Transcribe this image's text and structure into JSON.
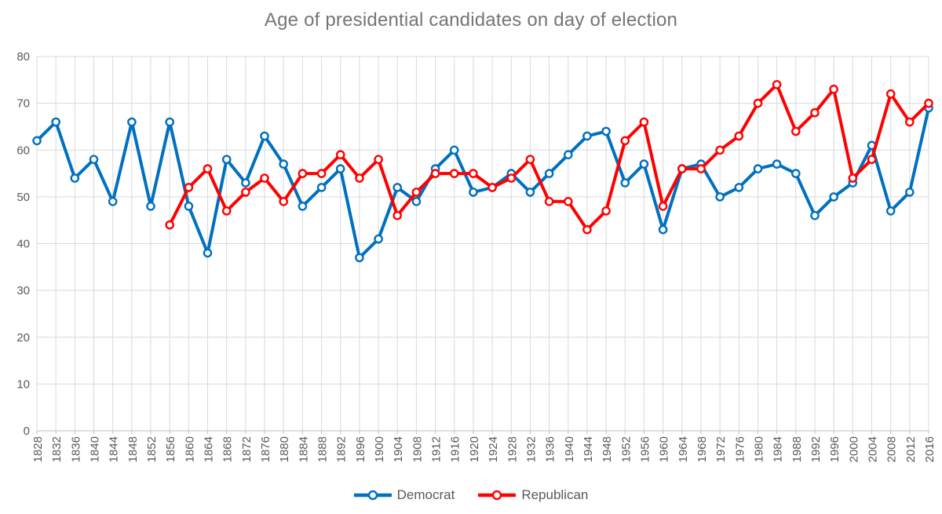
{
  "title": "Age of presidential candidates on day of election",
  "colors": {
    "democrat": "#0070C0",
    "republican": "#FF0000",
    "grid": "#D9D9D9",
    "axis_line": "#BFBFBF",
    "axis_text": "#595959",
    "title_text": "#757575",
    "background": "#FFFFFF"
  },
  "chart_data": {
    "type": "line",
    "title": "Age of presidential candidates on day of election",
    "xlabel": "",
    "ylabel": "",
    "ylim": [
      0,
      80
    ],
    "yticks": [
      0,
      10,
      20,
      30,
      40,
      50,
      60,
      70,
      80
    ],
    "grid": true,
    "marker": "circle",
    "legend_position": "bottom",
    "x": [
      1828,
      1832,
      1836,
      1840,
      1844,
      1848,
      1852,
      1856,
      1860,
      1864,
      1868,
      1872,
      1876,
      1880,
      1884,
      1888,
      1892,
      1896,
      1900,
      1904,
      1908,
      1912,
      1916,
      1920,
      1924,
      1928,
      1932,
      1936,
      1940,
      1944,
      1948,
      1952,
      1956,
      1960,
      1964,
      1968,
      1972,
      1976,
      1980,
      1984,
      1988,
      1992,
      1996,
      2000,
      2004,
      2008,
      2012,
      2016
    ],
    "series": [
      {
        "name": "Democrat",
        "color": "#0070C0",
        "values": [
          62,
          66,
          54,
          58,
          49,
          66,
          48,
          66,
          48,
          38,
          58,
          53,
          63,
          57,
          48,
          52,
          56,
          37,
          41,
          52,
          49,
          56,
          60,
          51,
          52,
          55,
          51,
          55,
          59,
          63,
          64,
          53,
          57,
          43,
          56,
          57,
          50,
          52,
          56,
          57,
          55,
          46,
          50,
          53,
          61,
          47,
          51,
          69
        ]
      },
      {
        "name": "Republican",
        "color": "#FF0000",
        "values": [
          null,
          null,
          null,
          null,
          null,
          null,
          null,
          44,
          52,
          56,
          47,
          51,
          54,
          49,
          55,
          55,
          59,
          54,
          58,
          46,
          51,
          55,
          55,
          55,
          52,
          54,
          58,
          49,
          49,
          43,
          47,
          62,
          66,
          48,
          56,
          56,
          60,
          63,
          70,
          74,
          64,
          68,
          73,
          54,
          58,
          72,
          66,
          70
        ]
      }
    ]
  }
}
